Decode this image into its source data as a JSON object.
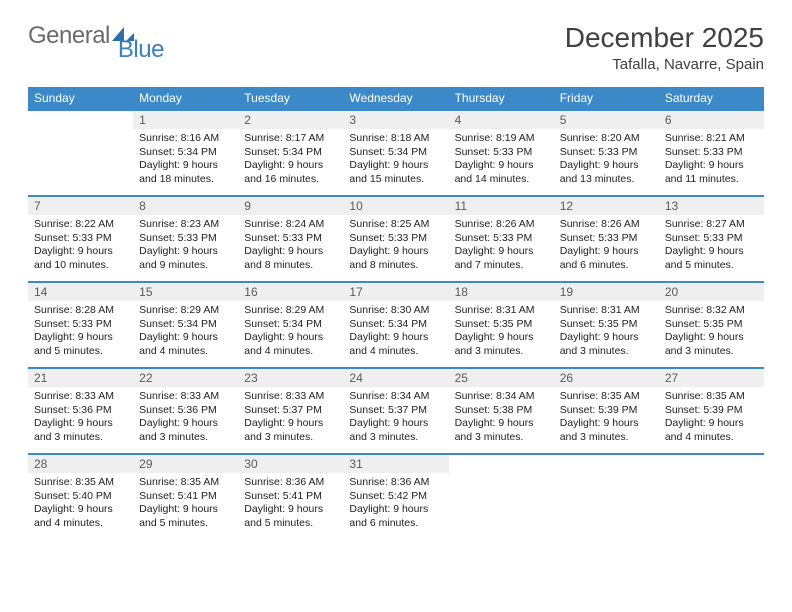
{
  "logo": {
    "part1": "General",
    "part2": "Blue"
  },
  "title": "December 2025",
  "location": "Tafalla, Navarre, Spain",
  "colors": {
    "header_bg": "#3b89c9",
    "header_fg": "#ffffff",
    "row_divider": "#3b89c9",
    "daynum_bg": "#efefef",
    "daynum_fg": "#5a5a5a",
    "body_fg": "#222222",
    "title_fg": "#404040",
    "logo_gray": "#6b6b6b",
    "logo_blue": "#3b7fbf"
  },
  "weekdays": [
    "Sunday",
    "Monday",
    "Tuesday",
    "Wednesday",
    "Thursday",
    "Friday",
    "Saturday"
  ],
  "weeks": [
    [
      null,
      {
        "n": "1",
        "sr": "Sunrise: 8:16 AM",
        "ss": "Sunset: 5:34 PM",
        "dl": "Daylight: 9 hours and 18 minutes."
      },
      {
        "n": "2",
        "sr": "Sunrise: 8:17 AM",
        "ss": "Sunset: 5:34 PM",
        "dl": "Daylight: 9 hours and 16 minutes."
      },
      {
        "n": "3",
        "sr": "Sunrise: 8:18 AM",
        "ss": "Sunset: 5:34 PM",
        "dl": "Daylight: 9 hours and 15 minutes."
      },
      {
        "n": "4",
        "sr": "Sunrise: 8:19 AM",
        "ss": "Sunset: 5:33 PM",
        "dl": "Daylight: 9 hours and 14 minutes."
      },
      {
        "n": "5",
        "sr": "Sunrise: 8:20 AM",
        "ss": "Sunset: 5:33 PM",
        "dl": "Daylight: 9 hours and 13 minutes."
      },
      {
        "n": "6",
        "sr": "Sunrise: 8:21 AM",
        "ss": "Sunset: 5:33 PM",
        "dl": "Daylight: 9 hours and 11 minutes."
      }
    ],
    [
      {
        "n": "7",
        "sr": "Sunrise: 8:22 AM",
        "ss": "Sunset: 5:33 PM",
        "dl": "Daylight: 9 hours and 10 minutes."
      },
      {
        "n": "8",
        "sr": "Sunrise: 8:23 AM",
        "ss": "Sunset: 5:33 PM",
        "dl": "Daylight: 9 hours and 9 minutes."
      },
      {
        "n": "9",
        "sr": "Sunrise: 8:24 AM",
        "ss": "Sunset: 5:33 PM",
        "dl": "Daylight: 9 hours and 8 minutes."
      },
      {
        "n": "10",
        "sr": "Sunrise: 8:25 AM",
        "ss": "Sunset: 5:33 PM",
        "dl": "Daylight: 9 hours and 8 minutes."
      },
      {
        "n": "11",
        "sr": "Sunrise: 8:26 AM",
        "ss": "Sunset: 5:33 PM",
        "dl": "Daylight: 9 hours and 7 minutes."
      },
      {
        "n": "12",
        "sr": "Sunrise: 8:26 AM",
        "ss": "Sunset: 5:33 PM",
        "dl": "Daylight: 9 hours and 6 minutes."
      },
      {
        "n": "13",
        "sr": "Sunrise: 8:27 AM",
        "ss": "Sunset: 5:33 PM",
        "dl": "Daylight: 9 hours and 5 minutes."
      }
    ],
    [
      {
        "n": "14",
        "sr": "Sunrise: 8:28 AM",
        "ss": "Sunset: 5:33 PM",
        "dl": "Daylight: 9 hours and 5 minutes."
      },
      {
        "n": "15",
        "sr": "Sunrise: 8:29 AM",
        "ss": "Sunset: 5:34 PM",
        "dl": "Daylight: 9 hours and 4 minutes."
      },
      {
        "n": "16",
        "sr": "Sunrise: 8:29 AM",
        "ss": "Sunset: 5:34 PM",
        "dl": "Daylight: 9 hours and 4 minutes."
      },
      {
        "n": "17",
        "sr": "Sunrise: 8:30 AM",
        "ss": "Sunset: 5:34 PM",
        "dl": "Daylight: 9 hours and 4 minutes."
      },
      {
        "n": "18",
        "sr": "Sunrise: 8:31 AM",
        "ss": "Sunset: 5:35 PM",
        "dl": "Daylight: 9 hours and 3 minutes."
      },
      {
        "n": "19",
        "sr": "Sunrise: 8:31 AM",
        "ss": "Sunset: 5:35 PM",
        "dl": "Daylight: 9 hours and 3 minutes."
      },
      {
        "n": "20",
        "sr": "Sunrise: 8:32 AM",
        "ss": "Sunset: 5:35 PM",
        "dl": "Daylight: 9 hours and 3 minutes."
      }
    ],
    [
      {
        "n": "21",
        "sr": "Sunrise: 8:33 AM",
        "ss": "Sunset: 5:36 PM",
        "dl": "Daylight: 9 hours and 3 minutes."
      },
      {
        "n": "22",
        "sr": "Sunrise: 8:33 AM",
        "ss": "Sunset: 5:36 PM",
        "dl": "Daylight: 9 hours and 3 minutes."
      },
      {
        "n": "23",
        "sr": "Sunrise: 8:33 AM",
        "ss": "Sunset: 5:37 PM",
        "dl": "Daylight: 9 hours and 3 minutes."
      },
      {
        "n": "24",
        "sr": "Sunrise: 8:34 AM",
        "ss": "Sunset: 5:37 PM",
        "dl": "Daylight: 9 hours and 3 minutes."
      },
      {
        "n": "25",
        "sr": "Sunrise: 8:34 AM",
        "ss": "Sunset: 5:38 PM",
        "dl": "Daylight: 9 hours and 3 minutes."
      },
      {
        "n": "26",
        "sr": "Sunrise: 8:35 AM",
        "ss": "Sunset: 5:39 PM",
        "dl": "Daylight: 9 hours and 3 minutes."
      },
      {
        "n": "27",
        "sr": "Sunrise: 8:35 AM",
        "ss": "Sunset: 5:39 PM",
        "dl": "Daylight: 9 hours and 4 minutes."
      }
    ],
    [
      {
        "n": "28",
        "sr": "Sunrise: 8:35 AM",
        "ss": "Sunset: 5:40 PM",
        "dl": "Daylight: 9 hours and 4 minutes."
      },
      {
        "n": "29",
        "sr": "Sunrise: 8:35 AM",
        "ss": "Sunset: 5:41 PM",
        "dl": "Daylight: 9 hours and 5 minutes."
      },
      {
        "n": "30",
        "sr": "Sunrise: 8:36 AM",
        "ss": "Sunset: 5:41 PM",
        "dl": "Daylight: 9 hours and 5 minutes."
      },
      {
        "n": "31",
        "sr": "Sunrise: 8:36 AM",
        "ss": "Sunset: 5:42 PM",
        "dl": "Daylight: 9 hours and 6 minutes."
      },
      null,
      null,
      null
    ]
  ]
}
